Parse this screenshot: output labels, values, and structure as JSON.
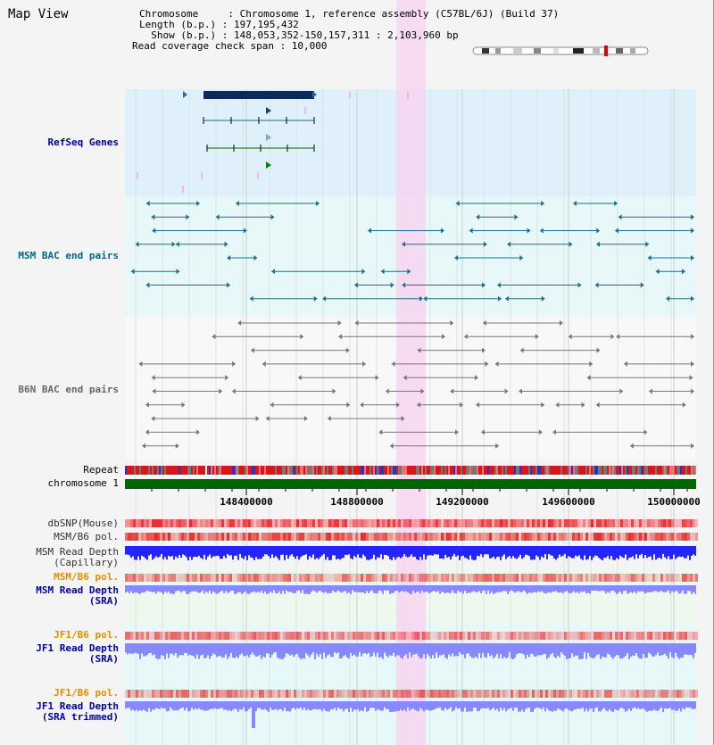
{
  "header": {
    "title": "Map View",
    "chromosome_line": "Chromosome     : Chromosome 1, reference assembly (C57BL/6J) (Build 37)",
    "length_line": "Length (b.p.) : 197,195,432",
    "show_line": "  Show (b.p.) : 148,053,352-150,157,311 : 2,103,960 bp",
    "coverage_line": "Read coverage check span : 10,000"
  },
  "tracks": {
    "refseq": "RefSeq Genes",
    "msm_bac": "MSM BAC end pairs",
    "b6n_bac": "B6N BAC end pairs",
    "repeat": "Repeat",
    "chromosome": "chromosome 1",
    "dbsnp": "dbSNP(Mouse)",
    "msm_b6_pol": "MSM/B6 pol.",
    "msm_depth_cap_1": "MSM Read Depth",
    "msm_depth_cap_2": "(Capillary)",
    "msm_b6_pol_sra": "MSM/B6 pol.",
    "msm_depth_sra_1": "MSM Read Depth",
    "msm_depth_sra_2": "(SRA)",
    "jf1_b6_pol": "JF1/B6 pol.",
    "jf1_depth_1": "JF1 Read Depth",
    "jf1_depth_2": "(SRA)",
    "jf1_b6_pol_2": "JF1/B6 pol.",
    "jf1_trim_1": "JF1 Read Depth",
    "jf1_trim_2": "(SRA trimmed)"
  },
  "axis": {
    "ticks": [
      "148400000",
      "148800000",
      "149200000",
      "149600000",
      "150000000"
    ]
  },
  "colors": {
    "refseq_bg": "#dff0fa",
    "gene_dark": "#0a2a5c",
    "msm_bac": "#1a6f8c",
    "b6n_bac": "#777777",
    "chromosome_bar": "#006400",
    "highlight": "#f7d6f0",
    "snp": "#e8282a",
    "depth": "#2424ff",
    "depth_light": "#8888ff"
  }
}
